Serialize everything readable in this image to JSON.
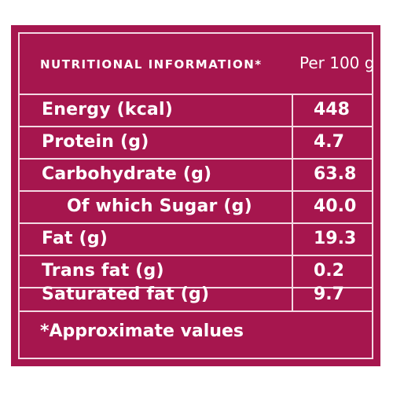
{
  "header": {
    "title": "NUTRITIONAL INFORMATION*",
    "unit": "Per 100 g"
  },
  "rows": [
    {
      "label": "Energy (kcal)",
      "value": "448"
    },
    {
      "label": "Protein (g)",
      "value": "4.7"
    },
    {
      "label": "Carbohydrate (g)",
      "value": "63.8"
    },
    {
      "label": "Of which Sugar (g)",
      "value": "40.0"
    },
    {
      "label": "Fat (g)",
      "value": "19.3"
    },
    {
      "label": "Trans fat (g)",
      "value": "0.2"
    },
    {
      "label": "Saturated fat (g)",
      "value": "9.7"
    }
  ],
  "footer": {
    "note": "*Approximate values"
  },
  "colors": {
    "background": "#a6164e",
    "border": "#f3d9e3",
    "text": "#ffffff"
  }
}
